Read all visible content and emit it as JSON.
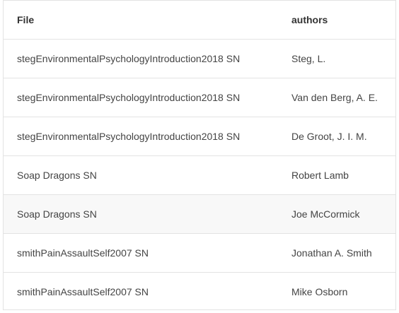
{
  "table": {
    "columns": [
      "File",
      "authors"
    ],
    "rows": [
      {
        "file": "stegEnvironmentalPsychologyIntroduction2018 SN",
        "authors": "Steg, L."
      },
      {
        "file": "stegEnvironmentalPsychologyIntroduction2018 SN",
        "authors": "Van den Berg, A. E."
      },
      {
        "file": "stegEnvironmentalPsychologyIntroduction2018 SN",
        "authors": "De Groot, J. I. M."
      },
      {
        "file": "Soap Dragons SN",
        "authors": "Robert Lamb"
      },
      {
        "file": "Soap Dragons SN",
        "authors": "Joe McCormick"
      },
      {
        "file": "smithPainAssaultSelf2007 SN",
        "authors": "Jonathan A. Smith"
      },
      {
        "file": "smithPainAssaultSelf2007 SN",
        "authors": "Mike Osborn"
      }
    ],
    "shaded_row_index": 4
  },
  "colors": {
    "border": "#e3e3e3",
    "shaded_row": "#f8f8f8",
    "text": "#444444",
    "header_text": "#333333"
  }
}
